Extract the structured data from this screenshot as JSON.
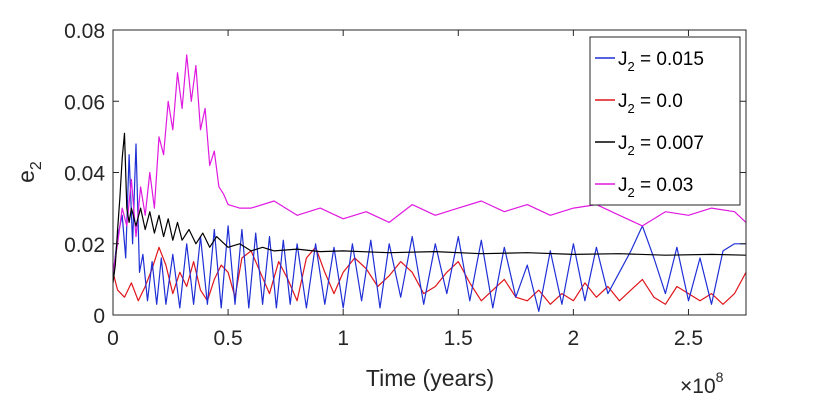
{
  "chart_data": {
    "type": "line",
    "title": "",
    "xlabel": "Time (years)",
    "ylabel": "e",
    "ylabel_subscript": "2",
    "x_exponent_label": "×10",
    "x_exponent_power": "8",
    "xlim": [
      0,
      2.75
    ],
    "ylim": [
      0,
      0.08
    ],
    "x_ticks": [
      0,
      0.5,
      1,
      1.5,
      2,
      2.5
    ],
    "x_tick_labels": [
      "0",
      "0.5",
      "1",
      "1.5",
      "2",
      "2.5"
    ],
    "y_ticks": [
      0,
      0.02,
      0.04,
      0.06,
      0.08
    ],
    "y_tick_labels": [
      "0",
      "0.02",
      "0.04",
      "0.06",
      "0.08"
    ],
    "grid": false,
    "legend_position": "top-right",
    "series": [
      {
        "name": "J2 = 0.015",
        "legend_label": {
          "base": "J",
          "sub": "2",
          "rest": " = 0.015"
        },
        "color": "#1f2fd6",
        "x": [
          0,
          0.02,
          0.04,
          0.055,
          0.07,
          0.085,
          0.1,
          0.115,
          0.13,
          0.15,
          0.17,
          0.19,
          0.21,
          0.23,
          0.26,
          0.29,
          0.32,
          0.35,
          0.38,
          0.41,
          0.44,
          0.47,
          0.5,
          0.53,
          0.56,
          0.59,
          0.62,
          0.65,
          0.68,
          0.71,
          0.74,
          0.77,
          0.8,
          0.84,
          0.88,
          0.92,
          0.96,
          1.0,
          1.04,
          1.08,
          1.12,
          1.16,
          1.2,
          1.25,
          1.3,
          1.35,
          1.4,
          1.45,
          1.5,
          1.55,
          1.6,
          1.65,
          1.7,
          1.75,
          1.8,
          1.85,
          1.9,
          1.95,
          2.0,
          2.05,
          2.1,
          2.15,
          2.2,
          2.25,
          2.3,
          2.35,
          2.4,
          2.45,
          2.5,
          2.55,
          2.6,
          2.65,
          2.7,
          2.75
        ],
        "values": [
          0.011,
          0.022,
          0.028,
          0.016,
          0.045,
          0.02,
          0.048,
          0.012,
          0.017,
          0.004,
          0.015,
          0.003,
          0.016,
          0.003,
          0.017,
          0.002,
          0.02,
          0.003,
          0.022,
          0.003,
          0.024,
          0.002,
          0.025,
          0.003,
          0.024,
          0.002,
          0.023,
          0.003,
          0.022,
          0.002,
          0.021,
          0.003,
          0.02,
          0.002,
          0.02,
          0.003,
          0.019,
          0.002,
          0.02,
          0.004,
          0.021,
          0.002,
          0.02,
          0.005,
          0.022,
          0.003,
          0.02,
          0.006,
          0.022,
          0.004,
          0.021,
          0.002,
          0.019,
          0.005,
          0.014,
          0.001,
          0.018,
          0.003,
          0.02,
          0.004,
          0.019,
          0.006,
          0.012,
          0.018,
          0.025,
          0.016,
          0.006,
          0.019,
          0.004,
          0.016,
          0.003,
          0.018,
          0.02,
          0.02
        ]
      },
      {
        "name": "J2 = 0.0",
        "legend_label": {
          "base": "J",
          "sub": "2",
          "rest": " = 0.0"
        },
        "color": "#e0151b",
        "x": [
          0,
          0.02,
          0.05,
          0.08,
          0.11,
          0.14,
          0.17,
          0.2,
          0.23,
          0.26,
          0.29,
          0.32,
          0.35,
          0.38,
          0.41,
          0.44,
          0.47,
          0.5,
          0.53,
          0.56,
          0.6,
          0.64,
          0.68,
          0.72,
          0.76,
          0.8,
          0.84,
          0.88,
          0.92,
          0.96,
          1.0,
          1.05,
          1.1,
          1.15,
          1.2,
          1.25,
          1.3,
          1.35,
          1.4,
          1.45,
          1.5,
          1.55,
          1.6,
          1.65,
          1.7,
          1.75,
          1.8,
          1.85,
          1.9,
          1.95,
          2.0,
          2.05,
          2.1,
          2.15,
          2.2,
          2.25,
          2.3,
          2.35,
          2.4,
          2.45,
          2.5,
          2.55,
          2.6,
          2.65,
          2.7,
          2.75
        ],
        "values": [
          0.012,
          0.007,
          0.005,
          0.009,
          0.004,
          0.008,
          0.013,
          0.019,
          0.014,
          0.006,
          0.012,
          0.008,
          0.015,
          0.007,
          0.004,
          0.01,
          0.014,
          0.012,
          0.005,
          0.016,
          0.018,
          0.012,
          0.006,
          0.015,
          0.01,
          0.004,
          0.016,
          0.019,
          0.012,
          0.006,
          0.012,
          0.016,
          0.013,
          0.008,
          0.011,
          0.015,
          0.012,
          0.006,
          0.008,
          0.012,
          0.015,
          0.009,
          0.004,
          0.007,
          0.01,
          0.005,
          0.004,
          0.007,
          0.003,
          0.006,
          0.004,
          0.009,
          0.005,
          0.008,
          0.004,
          0.007,
          0.01,
          0.005,
          0.003,
          0.008,
          0.006,
          0.004,
          0.006,
          0.003,
          0.006,
          0.012
        ]
      },
      {
        "name": "J2 = 0.007",
        "legend_label": {
          "base": "J",
          "sub": "2",
          "rest": " = 0.007"
        },
        "color": "#000000",
        "x": [
          0,
          0.01,
          0.02,
          0.03,
          0.04,
          0.05,
          0.06,
          0.07,
          0.08,
          0.1,
          0.12,
          0.14,
          0.16,
          0.18,
          0.2,
          0.22,
          0.24,
          0.26,
          0.28,
          0.3,
          0.33,
          0.36,
          0.39,
          0.42,
          0.45,
          0.5,
          0.55,
          0.6,
          0.65,
          0.7,
          0.8,
          0.9,
          1.0,
          1.2,
          1.4,
          1.6,
          1.8,
          2.0,
          2.2,
          2.4,
          2.6,
          2.75
        ],
        "values": [
          0.009,
          0.014,
          0.024,
          0.033,
          0.044,
          0.051,
          0.03,
          0.026,
          0.03,
          0.025,
          0.03,
          0.024,
          0.029,
          0.023,
          0.028,
          0.022,
          0.027,
          0.021,
          0.026,
          0.021,
          0.024,
          0.02,
          0.023,
          0.019,
          0.022,
          0.019,
          0.02,
          0.018,
          0.019,
          0.018,
          0.0185,
          0.0178,
          0.018,
          0.0175,
          0.0178,
          0.0172,
          0.0175,
          0.017,
          0.0172,
          0.0168,
          0.017,
          0.0168
        ]
      },
      {
        "name": "J2 = 0.03",
        "legend_label": {
          "base": "J",
          "sub": "2",
          "rest": " = 0.03"
        },
        "color": "#e019e0",
        "x": [
          0,
          0.02,
          0.04,
          0.06,
          0.08,
          0.1,
          0.12,
          0.14,
          0.16,
          0.18,
          0.2,
          0.22,
          0.24,
          0.26,
          0.28,
          0.3,
          0.32,
          0.34,
          0.36,
          0.38,
          0.4,
          0.42,
          0.44,
          0.46,
          0.48,
          0.5,
          0.55,
          0.6,
          0.7,
          0.8,
          0.9,
          1.0,
          1.1,
          1.2,
          1.3,
          1.4,
          1.5,
          1.6,
          1.7,
          1.8,
          1.9,
          2.0,
          2.1,
          2.2,
          2.3,
          2.4,
          2.5,
          2.6,
          2.7,
          2.75
        ],
        "values": [
          0.012,
          0.02,
          0.03,
          0.025,
          0.038,
          0.022,
          0.036,
          0.028,
          0.04,
          0.03,
          0.05,
          0.045,
          0.06,
          0.052,
          0.068,
          0.058,
          0.073,
          0.06,
          0.07,
          0.052,
          0.058,
          0.042,
          0.046,
          0.036,
          0.034,
          0.031,
          0.03,
          0.03,
          0.032,
          0.028,
          0.03,
          0.027,
          0.029,
          0.026,
          0.031,
          0.028,
          0.03,
          0.032,
          0.029,
          0.031,
          0.028,
          0.03,
          0.031,
          0.028,
          0.025,
          0.029,
          0.028,
          0.03,
          0.029,
          0.026
        ]
      }
    ]
  }
}
